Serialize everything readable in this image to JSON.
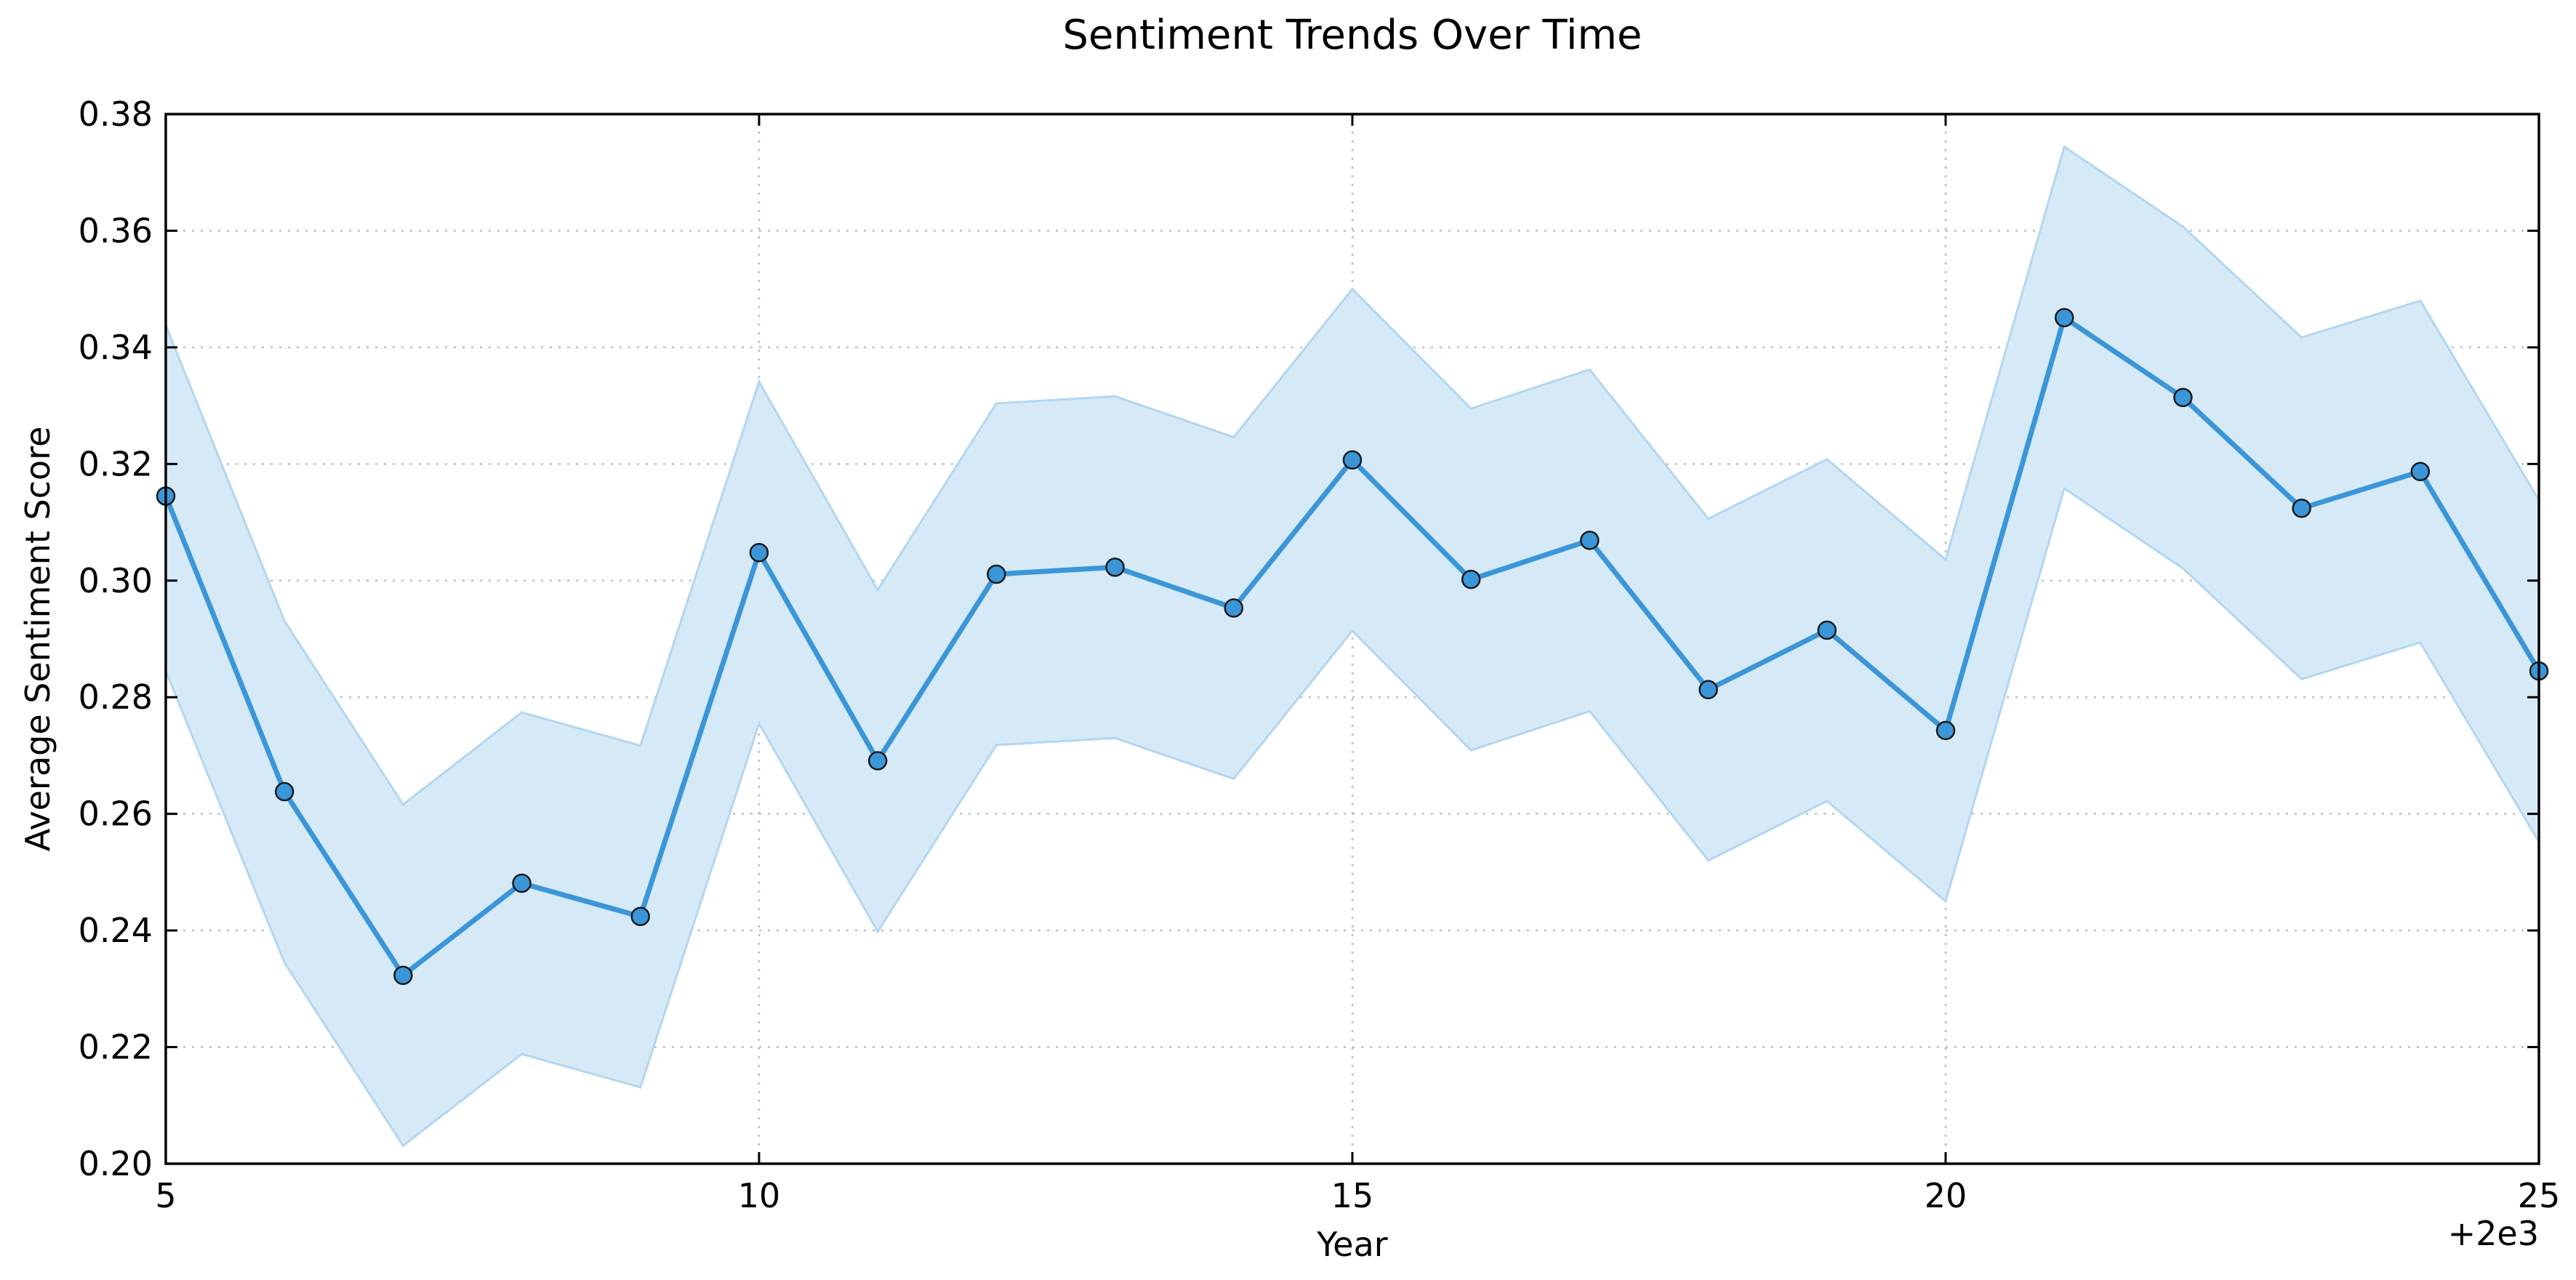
{
  "chart_data": {
    "type": "line",
    "title": "Sentiment Trends Over Time",
    "xlabel": "Year",
    "ylabel": "Average Sentiment Score",
    "x_offset_label": "+2e3",
    "xlim": [
      5,
      25
    ],
    "ylim": [
      0.2,
      0.38
    ],
    "x_ticks": [
      5,
      10,
      15,
      20,
      25
    ],
    "x_tick_labels": [
      "5",
      "10",
      "15",
      "20",
      "25"
    ],
    "y_ticks": [
      0.2,
      0.22,
      0.24,
      0.26,
      0.28,
      0.3,
      0.32,
      0.34,
      0.36,
      0.38
    ],
    "y_tick_labels": [
      "0.20",
      "0.22",
      "0.24",
      "0.26",
      "0.28",
      "0.30",
      "0.32",
      "0.34",
      "0.36",
      "0.38"
    ],
    "grid": true,
    "line_color": "#3a96d8",
    "band_color": "#d6e9f7",
    "band_edge_color": "#b3d6f0",
    "series": [
      {
        "x": [
          5,
          6,
          7,
          8,
          9,
          10,
          11,
          12,
          13,
          14,
          15,
          16,
          17,
          18,
          19,
          20,
          21,
          22,
          23,
          24,
          25
        ],
        "values": [
          0.3145,
          0.2638,
          0.2323,
          0.2481,
          0.2424,
          0.3048,
          0.2691,
          0.3011,
          0.3023,
          0.2953,
          0.3207,
          0.3002,
          0.3069,
          0.2813,
          0.2915,
          0.2743,
          0.3451,
          0.3314,
          0.3124,
          0.3187,
          0.2845
        ],
        "lower": [
          0.2845,
          0.2345,
          0.2031,
          0.2188,
          0.2131,
          0.2755,
          0.2398,
          0.2718,
          0.273,
          0.266,
          0.2914,
          0.2709,
          0.2776,
          0.252,
          0.2622,
          0.245,
          0.3158,
          0.3021,
          0.2831,
          0.2894,
          0.2552
        ],
        "upper": [
          0.3438,
          0.2931,
          0.2616,
          0.2774,
          0.2717,
          0.3341,
          0.2984,
          0.3304,
          0.3316,
          0.3246,
          0.35,
          0.3295,
          0.3362,
          0.3106,
          0.3208,
          0.3036,
          0.3744,
          0.3607,
          0.3417,
          0.348,
          0.3138
        ]
      }
    ]
  }
}
